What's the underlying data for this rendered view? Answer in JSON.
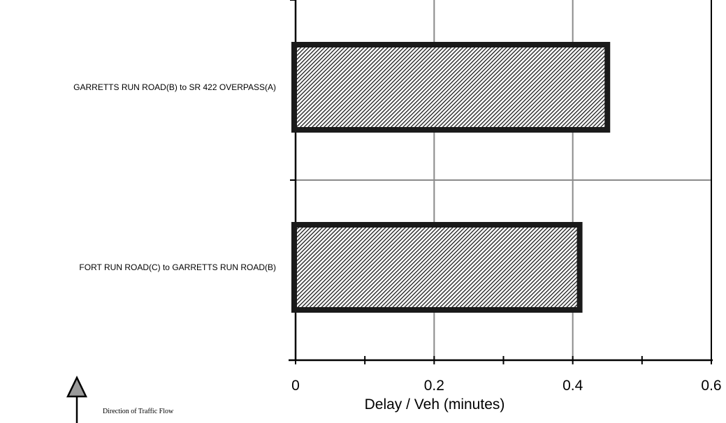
{
  "chart_data": {
    "type": "bar",
    "orientation": "horizontal",
    "categories": [
      "GARRETTS RUN ROAD(B) to SR 422 OVERPASS(A)",
      "FORT RUN ROAD(C) to GARRETTS RUN ROAD(B)"
    ],
    "values": [
      0.45,
      0.41
    ],
    "xlabel": "Delay / Veh (minutes)",
    "ylabel": "",
    "xlim": [
      0,
      0.6
    ],
    "xticks": [
      "0",
      "0.2",
      "0.4",
      "0.6"
    ],
    "grid": true,
    "bar_fill": "hatched",
    "bar_color": "#222222",
    "legend": null
  },
  "direction": {
    "label": "Direction of Traffic Flow",
    "icon": "up-arrow-icon"
  }
}
